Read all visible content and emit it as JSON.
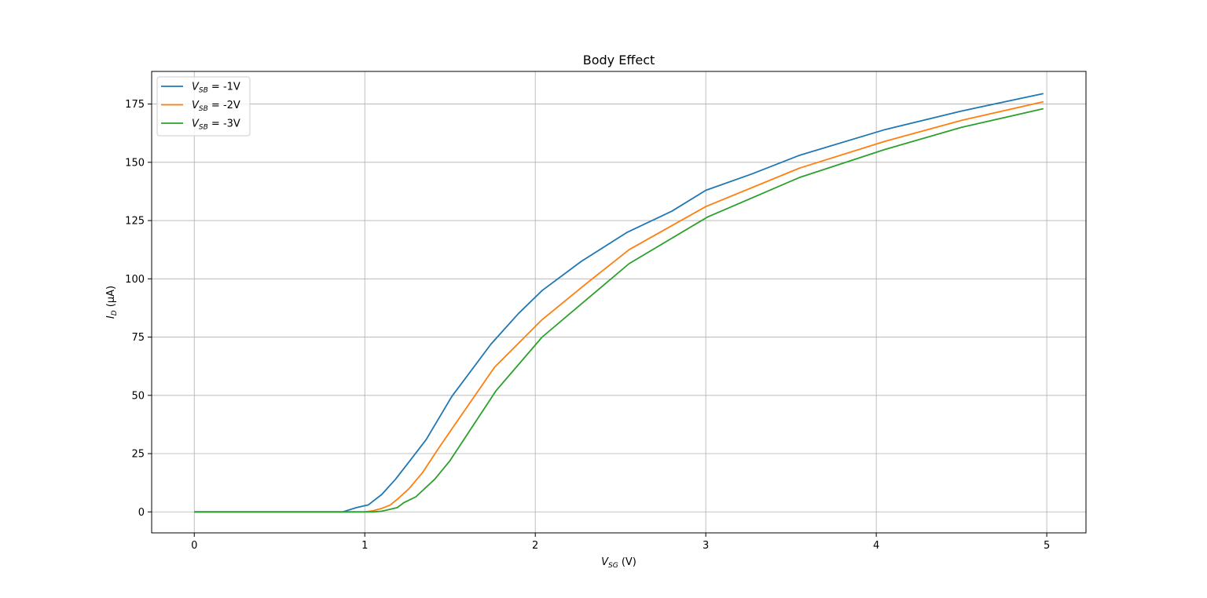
{
  "chart_data": {
    "type": "line",
    "title": "Body Effect",
    "xlabel": {
      "main": "V",
      "sub": "SG",
      "unit": " (V)"
    },
    "ylabel": {
      "main": "I",
      "sub": "D",
      "unit": " (μA)"
    },
    "xlim": [
      -0.25,
      5.23
    ],
    "ylim": [
      -9,
      189
    ],
    "xticks": [
      0,
      1,
      2,
      3,
      4,
      5
    ],
    "yticks": [
      0,
      25,
      50,
      75,
      100,
      125,
      150,
      175
    ],
    "xtick_labels": [
      "0",
      "1",
      "2",
      "3",
      "4",
      "5"
    ],
    "ytick_labels": [
      "0",
      "25",
      "50",
      "75",
      "100",
      "125",
      "150",
      "175"
    ],
    "grid": true,
    "legend_position": "top-left",
    "series": [
      {
        "name": "V_SB = -1V",
        "legend": {
          "main": "V",
          "sub": "SB",
          "rest": " = -1V"
        },
        "color": "#1f77b4",
        "points": [
          [
            0,
            0
          ],
          [
            0.5,
            0
          ],
          [
            0.87,
            0
          ],
          [
            0.95,
            1.8
          ],
          [
            1.02,
            3
          ],
          [
            1.1,
            7.5
          ],
          [
            1.18,
            14
          ],
          [
            1.26,
            21.5
          ],
          [
            1.36,
            31
          ],
          [
            1.51,
            49.5
          ],
          [
            1.74,
            72
          ],
          [
            1.9,
            85
          ],
          [
            2.04,
            95
          ],
          [
            2.27,
            107.5
          ],
          [
            2.54,
            120
          ],
          [
            2.8,
            129
          ],
          [
            3.0,
            138
          ],
          [
            3.27,
            145
          ],
          [
            3.55,
            153
          ],
          [
            4.05,
            164
          ],
          [
            4.5,
            172
          ],
          [
            4.98,
            179.5
          ]
        ]
      },
      {
        "name": "V_SB = -2V",
        "legend": {
          "main": "V",
          "sub": "SB",
          "rest": " = -2V"
        },
        "color": "#ff7f0e",
        "points": [
          [
            0,
            0
          ],
          [
            0.5,
            0
          ],
          [
            1.0,
            0
          ],
          [
            1.05,
            0.5
          ],
          [
            1.1,
            1.5
          ],
          [
            1.15,
            3
          ],
          [
            1.2,
            6
          ],
          [
            1.26,
            10
          ],
          [
            1.34,
            17
          ],
          [
            1.43,
            27
          ],
          [
            1.51,
            35.5
          ],
          [
            1.76,
            62
          ],
          [
            2.04,
            82.5
          ],
          [
            2.3,
            98
          ],
          [
            2.55,
            112.5
          ],
          [
            3.0,
            131
          ],
          [
            3.55,
            147.5
          ],
          [
            4.05,
            159
          ],
          [
            4.5,
            168
          ],
          [
            4.98,
            176
          ]
        ]
      },
      {
        "name": "V_SB = -3V",
        "legend": {
          "main": "V",
          "sub": "SB",
          "rest": " = -3V"
        },
        "color": "#2ca02c",
        "points": [
          [
            0,
            0
          ],
          [
            0.5,
            0
          ],
          [
            1.05,
            0
          ],
          [
            1.1,
            0.3
          ],
          [
            1.19,
            1.8
          ],
          [
            1.23,
            4
          ],
          [
            1.3,
            6.5
          ],
          [
            1.41,
            14
          ],
          [
            1.5,
            22
          ],
          [
            1.77,
            52
          ],
          [
            2.04,
            75
          ],
          [
            2.55,
            106.5
          ],
          [
            3.01,
            126.5
          ],
          [
            3.55,
            143.5
          ],
          [
            4.05,
            155.5
          ],
          [
            4.5,
            165
          ],
          [
            4.98,
            173
          ]
        ]
      }
    ]
  }
}
